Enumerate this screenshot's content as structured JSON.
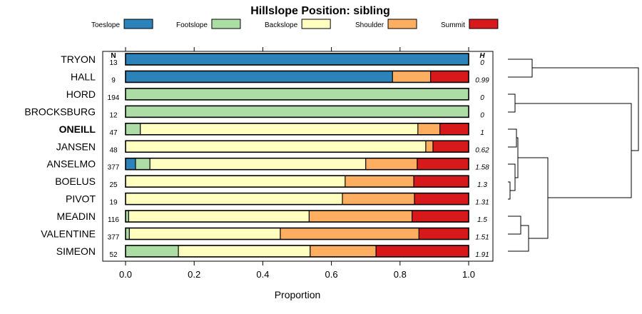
{
  "chart_data": {
    "type": "stacked-bar-horizontal",
    "title": "Hillslope Position: sibling",
    "xlabel": "Proportion",
    "xlim": [
      0,
      1
    ],
    "xticks": [
      "0.0",
      "0.2",
      "0.4",
      "0.6",
      "0.8",
      "1.0"
    ],
    "n_header": "N",
    "h_header": "H",
    "legend": [
      {
        "name": "Toeslope",
        "color": "#2b83ba"
      },
      {
        "name": "Footslope",
        "color": "#abdda4"
      },
      {
        "name": "Backslope",
        "color": "#ffffbf"
      },
      {
        "name": "Shoulder",
        "color": "#fdae61"
      },
      {
        "name": "Summit",
        "color": "#d7191c"
      }
    ],
    "rows": [
      {
        "label": "TRYON",
        "n": "13",
        "h": "0",
        "bold": false,
        "values": [
          1.0,
          0,
          0,
          0,
          0
        ]
      },
      {
        "label": "HALL",
        "n": "9",
        "h": "0.99",
        "bold": false,
        "values": [
          0.778,
          0,
          0,
          0.111,
          0.111
        ]
      },
      {
        "label": "HORD",
        "n": "194",
        "h": "0",
        "bold": false,
        "values": [
          0,
          1.0,
          0,
          0,
          0
        ]
      },
      {
        "label": "BROCKSBURG",
        "n": "12",
        "h": "0",
        "bold": false,
        "values": [
          0,
          1.0,
          0,
          0,
          0
        ]
      },
      {
        "label": "ONEILL",
        "n": "47",
        "h": "1",
        "bold": true,
        "values": [
          0,
          0.043,
          0.809,
          0.064,
          0.085
        ]
      },
      {
        "label": "JANSEN",
        "n": "48",
        "h": "0.62",
        "bold": false,
        "values": [
          0,
          0,
          0.875,
          0.021,
          0.104
        ]
      },
      {
        "label": "ANSELMO",
        "n": "377",
        "h": "1.58",
        "bold": false,
        "values": [
          0.029,
          0.042,
          0.629,
          0.15,
          0.15
        ]
      },
      {
        "label": "BOELUS",
        "n": "25",
        "h": "1.3",
        "bold": false,
        "values": [
          0,
          0,
          0.64,
          0.2,
          0.16
        ]
      },
      {
        "label": "PIVOT",
        "n": "19",
        "h": "1.31",
        "bold": false,
        "values": [
          0,
          0,
          0.632,
          0.21,
          0.158
        ]
      },
      {
        "label": "MEADIN",
        "n": "116",
        "h": "1.5",
        "bold": false,
        "values": [
          0,
          0.009,
          0.526,
          0.3,
          0.165
        ]
      },
      {
        "label": "VALENTINE",
        "n": "377",
        "h": "1.51",
        "bold": false,
        "values": [
          0,
          0.011,
          0.44,
          0.404,
          0.145
        ]
      },
      {
        "label": "SIMEON",
        "n": "52",
        "h": "1.91",
        "bold": false,
        "values": [
          0,
          0.154,
          0.384,
          0.192,
          0.27
        ]
      }
    ]
  }
}
